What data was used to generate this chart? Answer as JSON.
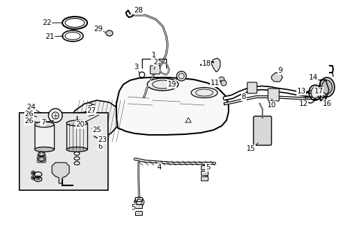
{
  "bg_color": "#ffffff",
  "inset_bg": "#e8e8e8",
  "line_color": "#000000",
  "fig_width": 4.89,
  "fig_height": 3.6,
  "dpi": 100,
  "font_size": 7.5
}
